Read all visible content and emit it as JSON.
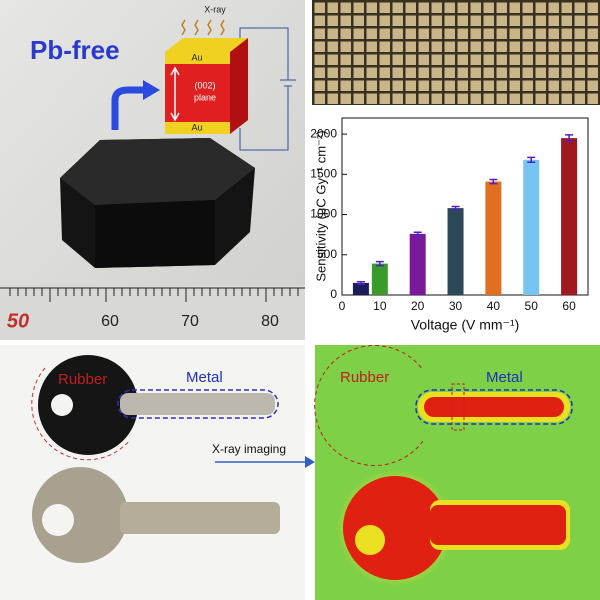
{
  "chart_data": {
    "type": "bar",
    "x": [
      5,
      10,
      20,
      30,
      40,
      50,
      60
    ],
    "values": [
      150,
      390,
      760,
      1080,
      1410,
      1680,
      1950
    ],
    "errors": [
      15,
      25,
      20,
      20,
      25,
      30,
      40
    ],
    "colors": [
      "#1c1c5c",
      "#3a9a2a",
      "#7a1a9a",
      "#2a4858",
      "#e07020",
      "#78c4f0",
      "#a01820"
    ],
    "xlabel": "Voltage (V mm⁻¹)",
    "ylabel": "Sensitivity (μC Gy⁻¹ cm⁻²)",
    "xlim": [
      0,
      65
    ],
    "xticks": [
      0,
      10,
      20,
      30,
      40,
      50,
      60
    ],
    "ylim": [
      0,
      2200
    ],
    "yticks": [
      0,
      500,
      1000,
      1500,
      2000
    ]
  },
  "crystal_panel": {
    "title": "Pb-free",
    "xray": "X-ray",
    "top_electrode": "Au",
    "bottom_electrode": "Au",
    "plane": [
      "(002)",
      "plane"
    ],
    "ruler": [
      "50",
      "60",
      "70",
      "80"
    ]
  },
  "imaging_panel": {
    "photo_labels": [
      "Rubber",
      "Metal"
    ],
    "arrow_label": "X-ray imaging",
    "image_labels": [
      "Rubber",
      "Metal"
    ]
  }
}
